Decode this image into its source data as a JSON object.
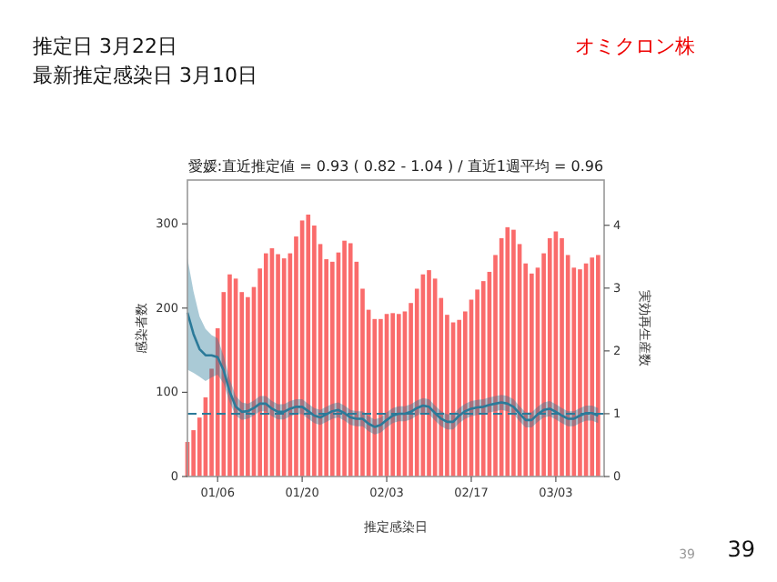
{
  "chart_data": {
    "type": "bar",
    "title": "愛媛:直近推定値 = 0.93 ( 0.82 - 1.04 ) / 直近1週平均 = 0.96",
    "xlabel": "推定感染日",
    "ylabel": "感染者数",
    "y2label": "実効再生産数",
    "annotations": [
      "推定日  3月22日",
      "最新推定感染日  3月10日",
      "オミクロン株",
      "39",
      "39"
    ],
    "x": [
      "--01-01",
      "--01-02",
      "--01-03",
      "--01-04",
      "--01-05",
      "--01-06",
      "--01-07",
      "--01-08",
      "--01-09",
      "--01-10",
      "--01-11",
      "--01-12",
      "--01-13",
      "--01-14",
      "--01-15",
      "--01-16",
      "--01-17",
      "--01-18",
      "--01-19",
      "--01-20",
      "--01-21",
      "--01-22",
      "--01-23",
      "--01-24",
      "--01-25",
      "--01-26",
      "--01-27",
      "--01-28",
      "--01-29",
      "--01-30",
      "--01-31",
      "--02-01",
      "--02-02",
      "--02-03",
      "--02-04",
      "--02-05",
      "--02-06",
      "--02-07",
      "--02-08",
      "--02-09",
      "--02-10",
      "--02-11",
      "--02-12",
      "--02-13",
      "--02-14",
      "--02-15",
      "--02-16",
      "--02-17",
      "--02-18",
      "--02-19",
      "--02-20",
      "--02-21",
      "--02-22",
      "--02-23",
      "--02-24",
      "--02-25",
      "--02-26",
      "--02-27",
      "--02-28",
      "--03-01",
      "--03-02",
      "--03-03",
      "--03-04",
      "--03-05",
      "--03-06",
      "--03-07",
      "--03-08",
      "--03-09",
      "--03-10"
    ],
    "series": [
      {
        "color": "#fa6b6b",
        "values": [
          41,
          55,
          70,
          94,
          128,
          176,
          219,
          240,
          235,
          219,
          213,
          225,
          247,
          265,
          271,
          264,
          259,
          265,
          285,
          304,
          311,
          298,
          276,
          258,
          255,
          266,
          280,
          277,
          255,
          223,
          198,
          187,
          187,
          193,
          194,
          193,
          196,
          206,
          223,
          240,
          245,
          235,
          212,
          192,
          183,
          186,
          196,
          210,
          222,
          232,
          243,
          263,
          283,
          296,
          293,
          276,
          253,
          241,
          248,
          265,
          283,
          291,
          283,
          263,
          248,
          246,
          253,
          260,
          263
        ]
      },
      {
        "type": "line",
        "axis": "y2",
        "color": "#2b7a99",
        "values": [
          2.61,
          2.27,
          2.03,
          1.93,
          1.93,
          1.9,
          1.69,
          1.35,
          1.11,
          1.03,
          1.04,
          1.09,
          1.16,
          1.16,
          1.08,
          1.03,
          1.03,
          1.08,
          1.11,
          1.11,
          1.04,
          0.97,
          0.94,
          0.99,
          1.04,
          1.06,
          1.01,
          0.94,
          0.92,
          0.92,
          0.84,
          0.79,
          0.82,
          0.9,
          0.97,
          1.0,
          1.0,
          1.03,
          1.09,
          1.13,
          1.11,
          1.01,
          0.92,
          0.87,
          0.87,
          0.97,
          1.04,
          1.08,
          1.1,
          1.11,
          1.14,
          1.16,
          1.18,
          1.16,
          1.11,
          1.0,
          0.9,
          0.9,
          0.99,
          1.06,
          1.08,
          1.03,
          0.97,
          0.92,
          0.92,
          0.97,
          1.01,
          1.01,
          0.97
        ],
        "lower": [
          1.7,
          1.65,
          1.59,
          1.52,
          1.58,
          1.62,
          1.48,
          1.18,
          0.97,
          0.9,
          0.92,
          0.97,
          1.04,
          1.04,
          0.96,
          0.91,
          0.91,
          0.96,
          0.99,
          0.99,
          0.92,
          0.85,
          0.82,
          0.87,
          0.92,
          0.94,
          0.89,
          0.82,
          0.8,
          0.8,
          0.72,
          0.67,
          0.7,
          0.78,
          0.85,
          0.88,
          0.88,
          0.91,
          0.97,
          1.01,
          0.99,
          0.89,
          0.8,
          0.75,
          0.75,
          0.85,
          0.92,
          0.96,
          0.98,
          0.99,
          1.02,
          1.04,
          1.06,
          1.04,
          0.99,
          0.88,
          0.78,
          0.78,
          0.87,
          0.94,
          0.96,
          0.91,
          0.85,
          0.8,
          0.8,
          0.85,
          0.89,
          0.89,
          0.85
        ],
        "upper": [
          3.48,
          2.95,
          2.55,
          2.35,
          2.25,
          2.2,
          1.92,
          1.55,
          1.28,
          1.18,
          1.16,
          1.21,
          1.28,
          1.28,
          1.2,
          1.15,
          1.15,
          1.2,
          1.23,
          1.23,
          1.16,
          1.09,
          1.06,
          1.11,
          1.16,
          1.18,
          1.13,
          1.06,
          1.04,
          1.04,
          0.96,
          0.91,
          0.94,
          1.02,
          1.09,
          1.12,
          1.12,
          1.15,
          1.21,
          1.25,
          1.23,
          1.13,
          1.04,
          0.99,
          0.99,
          1.09,
          1.16,
          1.2,
          1.22,
          1.23,
          1.26,
          1.28,
          1.3,
          1.28,
          1.23,
          1.12,
          1.02,
          1.02,
          1.11,
          1.18,
          1.2,
          1.15,
          1.09,
          1.04,
          1.04,
          1.09,
          1.13,
          1.13,
          1.09
        ]
      }
    ],
    "ref_lines": [
      {
        "axis": "y2",
        "value": 1,
        "color": "#2b7a99",
        "line_style": "dashed"
      }
    ],
    "xlim": [
      "--01-01",
      "--03-11"
    ],
    "xticks": [
      {
        "value": "--01-06",
        "label": "01/06"
      },
      {
        "value": "--01-20",
        "label": "01/20"
      },
      {
        "value": "--02-03",
        "label": "02/03"
      },
      {
        "value": "--02-17",
        "label": "02/17"
      },
      {
        "value": "--03-03",
        "label": "03/03"
      }
    ],
    "ylim": [
      0,
      352
    ],
    "yticks": [
      0,
      100,
      200,
      300
    ],
    "y2lim": [
      0,
      4.72
    ],
    "y2ticks": [
      0,
      1,
      2,
      3,
      4
    ],
    "grid": false,
    "marker": "none",
    "line_style": "solid"
  }
}
